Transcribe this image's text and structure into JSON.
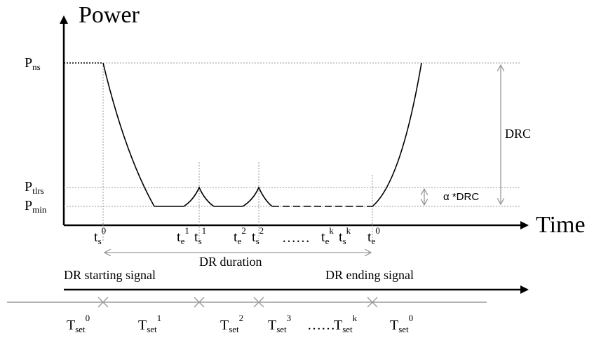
{
  "y_axis": {
    "title": "Power"
  },
  "x_axis": {
    "title": "Time"
  },
  "power_levels": [
    {
      "main": "P",
      "sub": "ns"
    },
    {
      "main": "P",
      "sub": "tlrs"
    },
    {
      "main": "P",
      "sub": "min"
    }
  ],
  "time_marks": {
    "ts0": {
      "main": "t",
      "sub": "s",
      "sup": "0"
    },
    "te1": {
      "main": "t",
      "sub": "e",
      "sup": "1"
    },
    "ts1": {
      "main": "t",
      "sub": "s",
      "sup": "1"
    },
    "te2": {
      "main": "t",
      "sub": "e",
      "sup": "2"
    },
    "ts2": {
      "main": "t",
      "sub": "s",
      "sup": "2"
    },
    "dots": "……",
    "tek": {
      "main": "t",
      "sub": "e",
      "sup": "k"
    },
    "tsk": {
      "main": "t",
      "sub": "s",
      "sup": "k"
    },
    "te0": {
      "main": "t",
      "sub": "e",
      "sup": "0"
    }
  },
  "dimensions": {
    "drc": "DRC",
    "alpha_drc": "α *DRC",
    "dr_duration": "DR duration"
  },
  "signals": {
    "start": "DR starting signal",
    "end": "DR ending signal"
  },
  "set_intervals": [
    {
      "main": "T",
      "sub": "set",
      "sup": "0"
    },
    {
      "main": "T",
      "sub": "set",
      "sup": "1"
    },
    {
      "main": "T",
      "sub": "set",
      "sup": "2"
    },
    {
      "main": "T",
      "sub": "set",
      "sup": "3"
    },
    {
      "main": "T",
      "sub": "set",
      "sup": "k"
    },
    {
      "main": "T",
      "sub": "set",
      "sup": "0"
    }
  ],
  "set_dots": "……"
}
